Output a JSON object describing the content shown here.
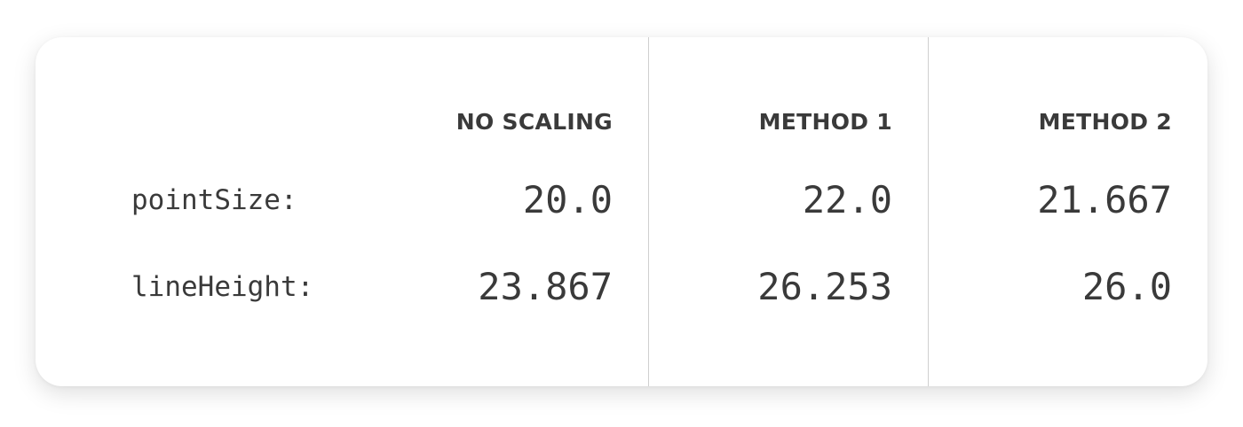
{
  "table": {
    "columns": [
      "NO SCALING",
      "METHOD 1",
      "METHOD 2"
    ],
    "rows": [
      {
        "label": "pointSize:",
        "values": [
          "20.0",
          "22.0",
          "21.667"
        ]
      },
      {
        "label": "lineHeight:",
        "values": [
          "23.867",
          "26.253",
          "26.0"
        ]
      }
    ]
  },
  "colors": {
    "text": "#3a3a3a",
    "divider": "#cfcfcf",
    "card_background": "#ffffff"
  }
}
